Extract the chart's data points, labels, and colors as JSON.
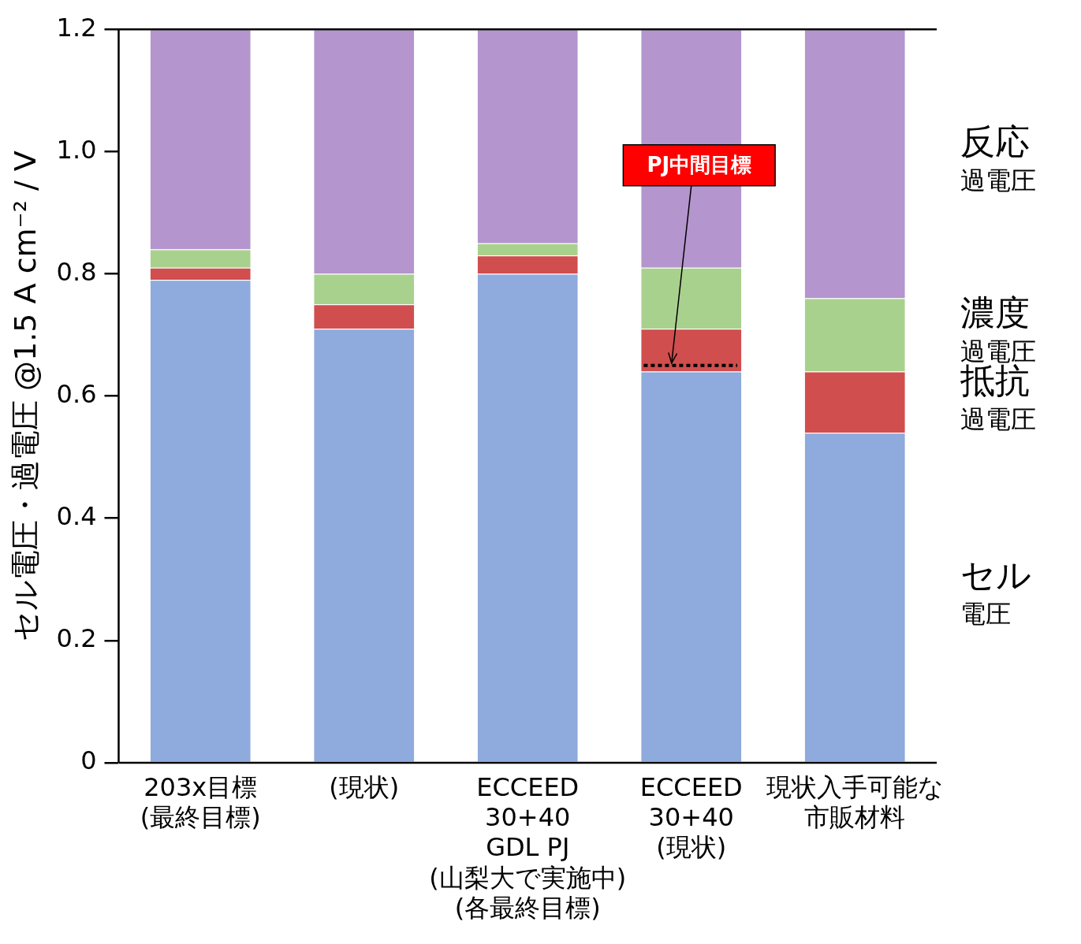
{
  "chart_data": {
    "type": "bar",
    "stacked": true,
    "ylabel": "セル電圧・過電圧 @1.5 A cm⁻² / V",
    "categories": [
      "203x目標\n(最終目標)",
      "(現状)",
      "ECCEED\n30+40\nGDL PJ\n(山梨大で実施中)\n(各最終目標)",
      "ECCEED\n30+40\n(現状)",
      "現状入手可能な市販材料"
    ],
    "series": [
      {
        "name": "セル電圧",
        "color": "#8faadc",
        "values": [
          0.79,
          0.71,
          0.8,
          0.64,
          0.54
        ]
      },
      {
        "name": "抵抗過電圧",
        "color": "#d04e4e",
        "values": [
          0.02,
          0.04,
          0.03,
          0.07,
          0.1
        ]
      },
      {
        "name": "濃度過電圧",
        "color": "#a9d18e",
        "values": [
          0.03,
          0.05,
          0.02,
          0.1,
          0.12
        ]
      },
      {
        "name": "反応過電圧",
        "color": "#b495cd",
        "values": [
          0.36,
          0.4,
          0.35,
          0.39,
          0.44
        ]
      }
    ],
    "ylim": [
      0,
      1.2
    ],
    "yticks": [
      0,
      0.2,
      0.4,
      0.6,
      0.8,
      {
        "value": 1,
        "label": "1.0"
      },
      1.2
    ],
    "grid": false,
    "legend": "right",
    "ref_lines": [
      {
        "axis": "y",
        "value": 0.65,
        "label": "PJ中間目標",
        "color": "#000000",
        "line_style": "dotted"
      }
    ]
  }
}
